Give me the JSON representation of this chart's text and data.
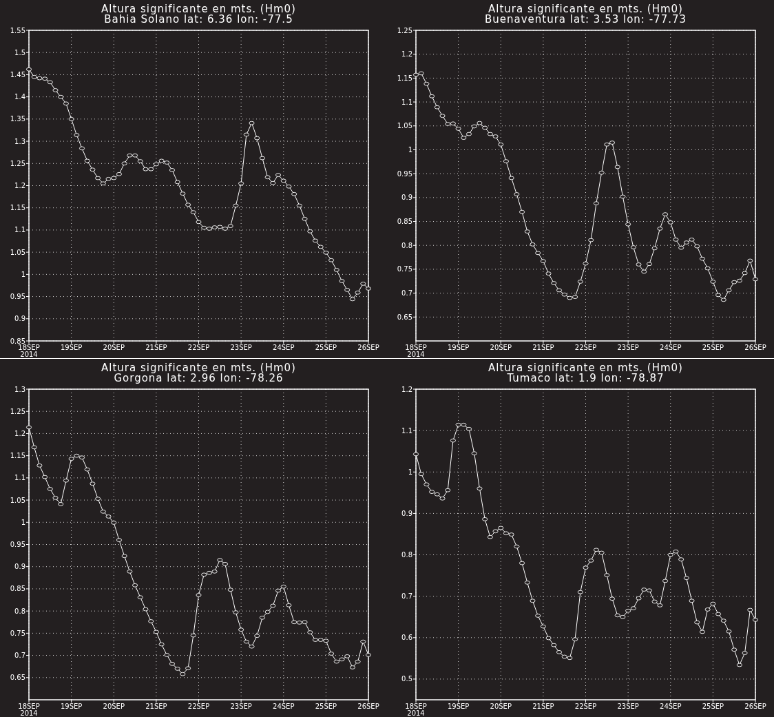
{
  "chart_data": [
    {
      "type": "line",
      "title": "Altura significante en mts. (Hm0)",
      "subtitle": "Bahia Solano lat: 6.36 lon: -77.5",
      "x": [
        "2014-09-18T00:00",
        "2014-09-18T03:00",
        "2014-09-18T06:00",
        "2014-09-18T09:00",
        "2014-09-18T12:00",
        "2014-09-18T15:00",
        "2014-09-18T18:00",
        "2014-09-18T21:00",
        "2014-09-19T00:00",
        "2014-09-19T03:00",
        "2014-09-19T06:00",
        "2014-09-19T09:00",
        "2014-09-19T12:00",
        "2014-09-19T15:00",
        "2014-09-19T18:00",
        "2014-09-19T21:00",
        "2014-09-20T00:00",
        "2014-09-20T03:00",
        "2014-09-20T06:00",
        "2014-09-20T09:00",
        "2014-09-20T12:00",
        "2014-09-20T15:00",
        "2014-09-20T18:00",
        "2014-09-20T21:00",
        "2014-09-21T00:00",
        "2014-09-21T03:00",
        "2014-09-21T06:00",
        "2014-09-21T09:00",
        "2014-09-21T12:00",
        "2014-09-21T15:00",
        "2014-09-21T18:00",
        "2014-09-21T21:00",
        "2014-09-22T00:00",
        "2014-09-22T03:00",
        "2014-09-22T06:00",
        "2014-09-22T09:00",
        "2014-09-22T12:00",
        "2014-09-22T15:00",
        "2014-09-22T18:00",
        "2014-09-22T21:00",
        "2014-09-23T00:00",
        "2014-09-23T03:00",
        "2014-09-23T06:00",
        "2014-09-23T09:00",
        "2014-09-23T12:00",
        "2014-09-23T15:00",
        "2014-09-23T18:00",
        "2014-09-23T21:00",
        "2014-09-24T00:00",
        "2014-09-24T03:00",
        "2014-09-24T06:00",
        "2014-09-24T09:00",
        "2014-09-24T12:00",
        "2014-09-24T15:00",
        "2014-09-24T18:00",
        "2014-09-24T21:00",
        "2014-09-25T00:00",
        "2014-09-25T03:00",
        "2014-09-25T06:00",
        "2014-09-25T09:00",
        "2014-09-25T12:00",
        "2014-09-25T15:00",
        "2014-09-25T18:00",
        "2014-09-25T21:00",
        "2014-09-26T00:00"
      ],
      "series": [
        {
          "color": "#ffffff",
          "values": [
            1.462,
            1.445,
            1.442,
            1.441,
            1.433,
            1.415,
            1.4,
            1.385,
            1.35,
            1.314,
            1.284,
            1.256,
            1.236,
            1.217,
            1.205,
            1.215,
            1.217,
            1.226,
            1.25,
            1.268,
            1.268,
            1.255,
            1.237,
            1.237,
            1.248,
            1.256,
            1.252,
            1.235,
            1.208,
            1.182,
            1.157,
            1.14,
            1.118,
            1.105,
            1.103,
            1.106,
            1.107,
            1.103,
            1.109,
            1.155,
            1.205,
            1.315,
            1.341,
            1.307,
            1.262,
            1.219,
            1.206,
            1.224,
            1.211,
            1.198,
            1.181,
            1.155,
            1.125,
            1.097,
            1.076,
            1.062,
            1.049,
            1.032,
            1.01,
            0.985,
            0.965,
            0.944,
            0.959,
            0.979,
            0.968
          ]
        }
      ],
      "xlim": [
        "2014-09-18T00:00",
        "2014-09-26T00:00"
      ],
      "xticks": [
        {
          "value": "2014-09-18",
          "label": "18SEP 2014"
        },
        {
          "value": "2014-09-19",
          "label": "19SEP"
        },
        {
          "value": "2014-09-20",
          "label": "20SEP"
        },
        {
          "value": "2014-09-21",
          "label": "21SEP"
        },
        {
          "value": "2014-09-22",
          "label": "22SEP"
        },
        {
          "value": "2014-09-23",
          "label": "23SEP"
        },
        {
          "value": "2014-09-24",
          "label": "24SEP"
        },
        {
          "value": "2014-09-25",
          "label": "25SEP"
        },
        {
          "value": "2014-09-26",
          "label": "26SEP"
        }
      ],
      "ylim": [
        0.85,
        1.55
      ],
      "yticks": [
        0.85,
        0.9,
        0.95,
        1,
        1.05,
        1.1,
        1.15,
        1.2,
        1.25,
        1.3,
        1.35,
        1.4,
        1.45,
        1.5,
        1.55
      ],
      "grid": true,
      "marker": "circle"
    },
    {
      "type": "line",
      "title": "Altura significante en mts. (Hm0)",
      "subtitle": "Buenaventura lat: 3.53 lon: -77.73",
      "x": [
        "2014-09-18T00:00",
        "2014-09-18T03:00",
        "2014-09-18T06:00",
        "2014-09-18T09:00",
        "2014-09-18T12:00",
        "2014-09-18T15:00",
        "2014-09-18T18:00",
        "2014-09-18T21:00",
        "2014-09-19T00:00",
        "2014-09-19T03:00",
        "2014-09-19T06:00",
        "2014-09-19T09:00",
        "2014-09-19T12:00",
        "2014-09-19T15:00",
        "2014-09-19T18:00",
        "2014-09-19T21:00",
        "2014-09-20T00:00",
        "2014-09-20T03:00",
        "2014-09-20T06:00",
        "2014-09-20T09:00",
        "2014-09-20T12:00",
        "2014-09-20T15:00",
        "2014-09-20T18:00",
        "2014-09-20T21:00",
        "2014-09-21T00:00",
        "2014-09-21T03:00",
        "2014-09-21T06:00",
        "2014-09-21T09:00",
        "2014-09-21T12:00",
        "2014-09-21T15:00",
        "2014-09-21T18:00",
        "2014-09-21T21:00",
        "2014-09-22T00:00",
        "2014-09-22T03:00",
        "2014-09-22T06:00",
        "2014-09-22T09:00",
        "2014-09-22T12:00",
        "2014-09-22T15:00",
        "2014-09-22T18:00",
        "2014-09-22T21:00",
        "2014-09-23T00:00",
        "2014-09-23T03:00",
        "2014-09-23T06:00",
        "2014-09-23T09:00",
        "2014-09-23T12:00",
        "2014-09-23T15:00",
        "2014-09-23T18:00",
        "2014-09-23T21:00",
        "2014-09-24T00:00",
        "2014-09-24T03:00",
        "2014-09-24T06:00",
        "2014-09-24T09:00",
        "2014-09-24T12:00",
        "2014-09-24T15:00",
        "2014-09-24T18:00",
        "2014-09-24T21:00",
        "2014-09-25T00:00",
        "2014-09-25T03:00",
        "2014-09-25T06:00",
        "2014-09-25T09:00",
        "2014-09-25T12:00",
        "2014-09-25T15:00",
        "2014-09-25T18:00",
        "2014-09-25T21:00",
        "2014-09-26T00:00"
      ],
      "series": [
        {
          "color": "#ffffff",
          "values": [
            1.157,
            1.16,
            1.138,
            1.112,
            1.089,
            1.071,
            1.054,
            1.055,
            1.044,
            1.025,
            1.033,
            1.049,
            1.056,
            1.046,
            1.033,
            1.028,
            1.011,
            0.976,
            0.941,
            0.907,
            0.87,
            0.829,
            0.802,
            0.784,
            0.767,
            0.741,
            0.721,
            0.706,
            0.697,
            0.69,
            0.692,
            0.724,
            0.762,
            0.811,
            0.888,
            0.952,
            1.011,
            1.015,
            0.964,
            0.902,
            0.844,
            0.796,
            0.76,
            0.745,
            0.761,
            0.794,
            0.835,
            0.865,
            0.848,
            0.812,
            0.795,
            0.806,
            0.812,
            0.798,
            0.772,
            0.752,
            0.724,
            0.696,
            0.686,
            0.706,
            0.723,
            0.726,
            0.742,
            0.768,
            0.729
          ]
        }
      ],
      "xlim": [
        "2014-09-18T00:00",
        "2014-09-26T00:00"
      ],
      "xticks": [
        {
          "value": "2014-09-18",
          "label": "18SEP 2014"
        },
        {
          "value": "2014-09-19",
          "label": "19SEP"
        },
        {
          "value": "2014-09-20",
          "label": "20SEP"
        },
        {
          "value": "2014-09-21",
          "label": "21SEP"
        },
        {
          "value": "2014-09-22",
          "label": "22SEP"
        },
        {
          "value": "2014-09-23",
          "label": "23SEP"
        },
        {
          "value": "2014-09-24",
          "label": "24SEP"
        },
        {
          "value": "2014-09-25",
          "label": "25SEP"
        },
        {
          "value": "2014-09-26",
          "label": "26SEP"
        }
      ],
      "ylim": [
        0.6,
        1.25
      ],
      "yticks": [
        0.65,
        0.7,
        0.75,
        0.8,
        0.85,
        0.9,
        0.95,
        1,
        1.05,
        1.1,
        1.15,
        1.2,
        1.25
      ],
      "grid": true,
      "marker": "circle"
    },
    {
      "type": "line",
      "title": "Altura significante en mts. (Hm0)",
      "subtitle": "Gorgona lat: 2.96 lon: -78.26",
      "x": [
        "2014-09-18T00:00",
        "2014-09-18T03:00",
        "2014-09-18T06:00",
        "2014-09-18T09:00",
        "2014-09-18T12:00",
        "2014-09-18T15:00",
        "2014-09-18T18:00",
        "2014-09-18T21:00",
        "2014-09-19T00:00",
        "2014-09-19T03:00",
        "2014-09-19T06:00",
        "2014-09-19T09:00",
        "2014-09-19T12:00",
        "2014-09-19T15:00",
        "2014-09-19T18:00",
        "2014-09-19T21:00",
        "2014-09-20T00:00",
        "2014-09-20T03:00",
        "2014-09-20T06:00",
        "2014-09-20T09:00",
        "2014-09-20T12:00",
        "2014-09-20T15:00",
        "2014-09-20T18:00",
        "2014-09-20T21:00",
        "2014-09-21T00:00",
        "2014-09-21T03:00",
        "2014-09-21T06:00",
        "2014-09-21T09:00",
        "2014-09-21T12:00",
        "2014-09-21T15:00",
        "2014-09-21T18:00",
        "2014-09-21T21:00",
        "2014-09-22T00:00",
        "2014-09-22T03:00",
        "2014-09-22T06:00",
        "2014-09-22T09:00",
        "2014-09-22T12:00",
        "2014-09-22T15:00",
        "2014-09-22T18:00",
        "2014-09-22T21:00",
        "2014-09-23T00:00",
        "2014-09-23T03:00",
        "2014-09-23T06:00",
        "2014-09-23T09:00",
        "2014-09-23T12:00",
        "2014-09-23T15:00",
        "2014-09-23T18:00",
        "2014-09-23T21:00",
        "2014-09-24T00:00",
        "2014-09-24T03:00",
        "2014-09-24T06:00",
        "2014-09-24T09:00",
        "2014-09-24T12:00",
        "2014-09-24T15:00",
        "2014-09-24T18:00",
        "2014-09-24T21:00",
        "2014-09-25T00:00",
        "2014-09-25T03:00",
        "2014-09-25T06:00",
        "2014-09-25T09:00",
        "2014-09-25T12:00",
        "2014-09-25T15:00",
        "2014-09-25T18:00",
        "2014-09-25T21:00",
        "2014-09-26T00:00"
      ],
      "series": [
        {
          "color": "#ffffff",
          "values": [
            1.214,
            1.169,
            1.128,
            1.102,
            1.075,
            1.055,
            1.041,
            1.094,
            1.143,
            1.15,
            1.146,
            1.119,
            1.087,
            1.053,
            1.024,
            1.013,
            0.999,
            0.96,
            0.924,
            0.889,
            0.858,
            0.831,
            0.804,
            0.777,
            0.753,
            0.725,
            0.701,
            0.681,
            0.67,
            0.658,
            0.671,
            0.745,
            0.836,
            0.882,
            0.886,
            0.889,
            0.915,
            0.906,
            0.848,
            0.797,
            0.758,
            0.731,
            0.72,
            0.744,
            0.785,
            0.798,
            0.812,
            0.846,
            0.855,
            0.813,
            0.775,
            0.774,
            0.775,
            0.752,
            0.735,
            0.735,
            0.733,
            0.704,
            0.686,
            0.691,
            0.698,
            0.673,
            0.686,
            0.731,
            0.701
          ]
        }
      ],
      "xlim": [
        "2014-09-18T00:00",
        "2014-09-26T00:00"
      ],
      "xticks": [
        {
          "value": "2014-09-18",
          "label": "18SEP 2014"
        },
        {
          "value": "2014-09-19",
          "label": "19SEP"
        },
        {
          "value": "2014-09-20",
          "label": "20SEP"
        },
        {
          "value": "2014-09-21",
          "label": "21SEP"
        },
        {
          "value": "2014-09-22",
          "label": "22SEP"
        },
        {
          "value": "2014-09-23",
          "label": "23SEP"
        },
        {
          "value": "2014-09-24",
          "label": "24SEP"
        },
        {
          "value": "2014-09-25",
          "label": "25SEP"
        },
        {
          "value": "2014-09-26",
          "label": "26SEP"
        }
      ],
      "ylim": [
        0.6,
        1.3
      ],
      "yticks": [
        0.65,
        0.7,
        0.75,
        0.8,
        0.85,
        0.9,
        0.95,
        1,
        1.05,
        1.1,
        1.15,
        1.2,
        1.25,
        1.3
      ],
      "grid": true,
      "marker": "circle"
    },
    {
      "type": "line",
      "title": "Altura significante en mts. (Hm0)",
      "subtitle": "Tumaco lat: 1.9 lon: -78.87",
      "x": [
        "2014-09-18T00:00",
        "2014-09-18T03:00",
        "2014-09-18T06:00",
        "2014-09-18T09:00",
        "2014-09-18T12:00",
        "2014-09-18T15:00",
        "2014-09-18T18:00",
        "2014-09-18T21:00",
        "2014-09-19T00:00",
        "2014-09-19T03:00",
        "2014-09-19T06:00",
        "2014-09-19T09:00",
        "2014-09-19T12:00",
        "2014-09-19T15:00",
        "2014-09-19T18:00",
        "2014-09-19T21:00",
        "2014-09-20T00:00",
        "2014-09-20T03:00",
        "2014-09-20T06:00",
        "2014-09-20T09:00",
        "2014-09-20T12:00",
        "2014-09-20T15:00",
        "2014-09-20T18:00",
        "2014-09-20T21:00",
        "2014-09-21T00:00",
        "2014-09-21T03:00",
        "2014-09-21T06:00",
        "2014-09-21T09:00",
        "2014-09-21T12:00",
        "2014-09-21T15:00",
        "2014-09-21T18:00",
        "2014-09-21T21:00",
        "2014-09-22T00:00",
        "2014-09-22T03:00",
        "2014-09-22T06:00",
        "2014-09-22T09:00",
        "2014-09-22T12:00",
        "2014-09-22T15:00",
        "2014-09-22T18:00",
        "2014-09-22T21:00",
        "2014-09-23T00:00",
        "2014-09-23T03:00",
        "2014-09-23T06:00",
        "2014-09-23T09:00",
        "2014-09-23T12:00",
        "2014-09-23T15:00",
        "2014-09-23T18:00",
        "2014-09-23T21:00",
        "2014-09-24T00:00",
        "2014-09-24T03:00",
        "2014-09-24T06:00",
        "2014-09-24T09:00",
        "2014-09-24T12:00",
        "2014-09-24T15:00",
        "2014-09-24T18:00",
        "2014-09-24T21:00",
        "2014-09-25T00:00",
        "2014-09-25T03:00",
        "2014-09-25T06:00",
        "2014-09-25T09:00",
        "2014-09-25T12:00",
        "2014-09-25T15:00",
        "2014-09-25T18:00",
        "2014-09-25T21:00",
        "2014-09-26T00:00"
      ],
      "series": [
        {
          "color": "#ffffff",
          "values": [
            1.043,
            0.995,
            0.97,
            0.952,
            0.946,
            0.936,
            0.956,
            1.076,
            1.114,
            1.114,
            1.104,
            1.045,
            0.96,
            0.886,
            0.843,
            0.857,
            0.865,
            0.852,
            0.849,
            0.82,
            0.78,
            0.733,
            0.689,
            0.653,
            0.627,
            0.599,
            0.582,
            0.565,
            0.554,
            0.551,
            0.596,
            0.71,
            0.769,
            0.786,
            0.812,
            0.805,
            0.751,
            0.694,
            0.654,
            0.65,
            0.665,
            0.671,
            0.695,
            0.716,
            0.714,
            0.687,
            0.678,
            0.737,
            0.8,
            0.808,
            0.789,
            0.744,
            0.689,
            0.637,
            0.614,
            0.668,
            0.682,
            0.657,
            0.641,
            0.615,
            0.571,
            0.534,
            0.563,
            0.667,
            0.643
          ]
        }
      ],
      "xlim": [
        "2014-09-18T00:00",
        "2014-09-26T00:00"
      ],
      "xticks": [
        {
          "value": "2014-09-18",
          "label": "18SEP 2014"
        },
        {
          "value": "2014-09-19",
          "label": "19SEP"
        },
        {
          "value": "2014-09-20",
          "label": "20SEP"
        },
        {
          "value": "2014-09-21",
          "label": "21SEP"
        },
        {
          "value": "2014-09-22",
          "label": "22SEP"
        },
        {
          "value": "2014-09-23",
          "label": "23SEP"
        },
        {
          "value": "2014-09-24",
          "label": "24SEP"
        },
        {
          "value": "2014-09-25",
          "label": "25SEP"
        },
        {
          "value": "2014-09-26",
          "label": "26SEP"
        }
      ],
      "ylim": [
        0.45,
        1.2
      ],
      "yticks": [
        0.5,
        0.6,
        0.7,
        0.8,
        0.9,
        1,
        1.1,
        1.2
      ],
      "grid": true,
      "marker": "circle"
    }
  ]
}
